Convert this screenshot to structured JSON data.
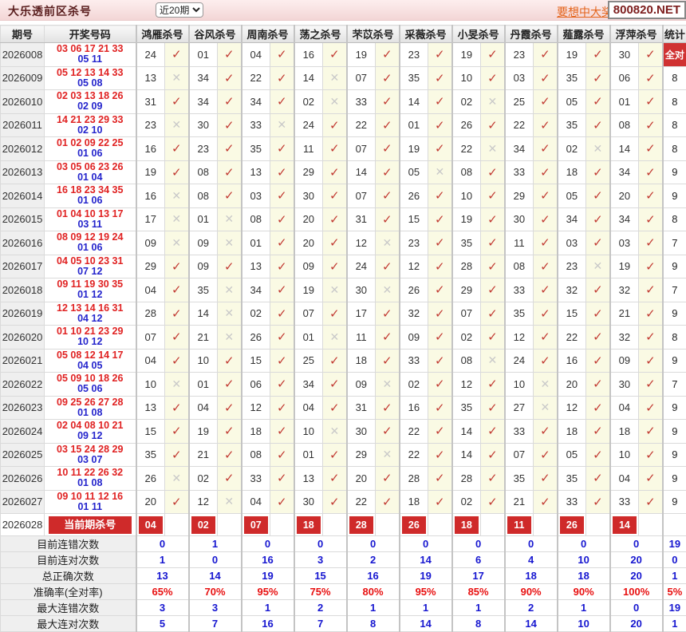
{
  "header": {
    "title": "大乐透前区杀号",
    "range_value": "近20期",
    "promo_link": "要想中大奖，天",
    "site_badge": "800820.NET"
  },
  "colors": {
    "accent_red": "#cf2a2a",
    "hit_check": "#c23b33",
    "miss_cross": "#c9c9c9",
    "front_numbers": "#e02222",
    "back_numbers": "#2424cc",
    "summary_blue": "#1616d0",
    "summary_red": "#e81111"
  },
  "table": {
    "columns": {
      "period": "期号",
      "numbers": "开奖号码",
      "experts": [
        "鸿雁杀号",
        "谷风杀号",
        "周南杀号",
        "荡之杀号",
        "芣苡杀号",
        "采薇杀号",
        "小旻杀号",
        "丹霞杀号",
        "薤露杀号",
        "浮萍杀号"
      ],
      "stat": "统计"
    },
    "marks": {
      "hit": "✓",
      "miss": "✕"
    },
    "rows": [
      {
        "period": "2026008",
        "front": "03 06 17 21 33",
        "back": "05 11",
        "kills": [
          "24",
          "01",
          "04",
          "16",
          "19",
          "23",
          "19",
          "23",
          "19",
          "30"
        ],
        "marks": [
          1,
          1,
          1,
          1,
          1,
          1,
          1,
          1,
          1,
          1
        ],
        "stat": "全对"
      },
      {
        "period": "2026009",
        "front": "05 12 13 14 33",
        "back": "05 08",
        "kills": [
          "13",
          "34",
          "22",
          "14",
          "07",
          "35",
          "10",
          "03",
          "35",
          "06"
        ],
        "marks": [
          0,
          1,
          1,
          0,
          1,
          1,
          1,
          1,
          1,
          1
        ],
        "stat": "8"
      },
      {
        "period": "2026010",
        "front": "02 03 13 18 26",
        "back": "02 09",
        "kills": [
          "31",
          "34",
          "34",
          "02",
          "33",
          "14",
          "02",
          "25",
          "05",
          "01"
        ],
        "marks": [
          1,
          1,
          1,
          0,
          1,
          1,
          0,
          1,
          1,
          1
        ],
        "stat": "8"
      },
      {
        "period": "2026011",
        "front": "14 21 23 29 33",
        "back": "02 10",
        "kills": [
          "23",
          "30",
          "33",
          "24",
          "22",
          "01",
          "26",
          "22",
          "35",
          "08"
        ],
        "marks": [
          0,
          1,
          0,
          1,
          1,
          1,
          1,
          1,
          1,
          1
        ],
        "stat": "8"
      },
      {
        "period": "2026012",
        "front": "01 02 09 22 25",
        "back": "01 06",
        "kills": [
          "16",
          "23",
          "35",
          "11",
          "07",
          "19",
          "22",
          "34",
          "02",
          "14"
        ],
        "marks": [
          1,
          1,
          1,
          1,
          1,
          1,
          0,
          1,
          0,
          1
        ],
        "stat": "8"
      },
      {
        "period": "2026013",
        "front": "03 05 06 23 26",
        "back": "01 04",
        "kills": [
          "19",
          "08",
          "13",
          "29",
          "14",
          "05",
          "08",
          "33",
          "18",
          "34"
        ],
        "marks": [
          1,
          1,
          1,
          1,
          1,
          0,
          1,
          1,
          1,
          1
        ],
        "stat": "9"
      },
      {
        "period": "2026014",
        "front": "16 18 23 34 35",
        "back": "01 06",
        "kills": [
          "16",
          "08",
          "03",
          "30",
          "07",
          "26",
          "10",
          "29",
          "05",
          "20"
        ],
        "marks": [
          0,
          1,
          1,
          1,
          1,
          1,
          1,
          1,
          1,
          1
        ],
        "stat": "9"
      },
      {
        "period": "2026015",
        "front": "01 04 10 13 17",
        "back": "03 11",
        "kills": [
          "17",
          "01",
          "08",
          "20",
          "31",
          "15",
          "19",
          "30",
          "34",
          "34"
        ],
        "marks": [
          0,
          0,
          1,
          1,
          1,
          1,
          1,
          1,
          1,
          1
        ],
        "stat": "8"
      },
      {
        "period": "2026016",
        "front": "08 09 12 19 24",
        "back": "01 06",
        "kills": [
          "09",
          "09",
          "01",
          "20",
          "12",
          "23",
          "35",
          "11",
          "03",
          "03"
        ],
        "marks": [
          0,
          0,
          1,
          1,
          0,
          1,
          1,
          1,
          1,
          1
        ],
        "stat": "7"
      },
      {
        "period": "2026017",
        "front": "04 05 10 23 31",
        "back": "07 12",
        "kills": [
          "29",
          "09",
          "13",
          "09",
          "24",
          "12",
          "28",
          "08",
          "23",
          "19"
        ],
        "marks": [
          1,
          1,
          1,
          1,
          1,
          1,
          1,
          1,
          0,
          1
        ],
        "stat": "9"
      },
      {
        "period": "2026018",
        "front": "09 11 19 30 35",
        "back": "01 12",
        "kills": [
          "04",
          "35",
          "34",
          "19",
          "30",
          "26",
          "29",
          "33",
          "32",
          "32"
        ],
        "marks": [
          1,
          0,
          1,
          0,
          0,
          1,
          1,
          1,
          1,
          1
        ],
        "stat": "7"
      },
      {
        "period": "2026019",
        "front": "12 13 14 16 31",
        "back": "04 12",
        "kills": [
          "28",
          "14",
          "02",
          "07",
          "17",
          "32",
          "07",
          "35",
          "15",
          "21"
        ],
        "marks": [
          1,
          0,
          1,
          1,
          1,
          1,
          1,
          1,
          1,
          1
        ],
        "stat": "9"
      },
      {
        "period": "2026020",
        "front": "01 10 21 23 29",
        "back": "10 12",
        "kills": [
          "07",
          "21",
          "26",
          "01",
          "11",
          "09",
          "02",
          "12",
          "22",
          "32"
        ],
        "marks": [
          1,
          0,
          1,
          0,
          1,
          1,
          1,
          1,
          1,
          1
        ],
        "stat": "8"
      },
      {
        "period": "2026021",
        "front": "05 08 12 14 17",
        "back": "04 05",
        "kills": [
          "04",
          "10",
          "15",
          "25",
          "18",
          "33",
          "08",
          "24",
          "16",
          "09"
        ],
        "marks": [
          1,
          1,
          1,
          1,
          1,
          1,
          0,
          1,
          1,
          1
        ],
        "stat": "9"
      },
      {
        "period": "2026022",
        "front": "05 09 10 18 26",
        "back": "05 06",
        "kills": [
          "10",
          "01",
          "06",
          "34",
          "09",
          "02",
          "12",
          "10",
          "20",
          "30"
        ],
        "marks": [
          0,
          1,
          1,
          1,
          0,
          1,
          1,
          0,
          1,
          1
        ],
        "stat": "7"
      },
      {
        "period": "2026023",
        "front": "09 25 26 27 28",
        "back": "01 08",
        "kills": [
          "13",
          "04",
          "12",
          "04",
          "31",
          "16",
          "35",
          "27",
          "12",
          "04"
        ],
        "marks": [
          1,
          1,
          1,
          1,
          1,
          1,
          1,
          0,
          1,
          1
        ],
        "stat": "9"
      },
      {
        "period": "2026024",
        "front": "02 04 08 10 21",
        "back": "09 12",
        "kills": [
          "15",
          "19",
          "18",
          "10",
          "30",
          "22",
          "14",
          "33",
          "18",
          "18"
        ],
        "marks": [
          1,
          1,
          1,
          0,
          1,
          1,
          1,
          1,
          1,
          1
        ],
        "stat": "9"
      },
      {
        "period": "2026025",
        "front": "03 15 24 28 29",
        "back": "03 07",
        "kills": [
          "35",
          "21",
          "08",
          "01",
          "29",
          "22",
          "14",
          "07",
          "05",
          "10"
        ],
        "marks": [
          1,
          1,
          1,
          1,
          0,
          1,
          1,
          1,
          1,
          1
        ],
        "stat": "9"
      },
      {
        "period": "2026026",
        "front": "10 11 22 26 32",
        "back": "01 08",
        "kills": [
          "26",
          "02",
          "33",
          "13",
          "20",
          "28",
          "28",
          "35",
          "35",
          "04"
        ],
        "marks": [
          0,
          1,
          1,
          1,
          1,
          1,
          1,
          1,
          1,
          1
        ],
        "stat": "9"
      },
      {
        "period": "2026027",
        "front": "09 10 11 12 16",
        "back": "01 11",
        "kills": [
          "20",
          "12",
          "04",
          "30",
          "22",
          "18",
          "02",
          "21",
          "33",
          "33"
        ],
        "marks": [
          1,
          0,
          1,
          1,
          1,
          1,
          1,
          1,
          1,
          1
        ],
        "stat": "9"
      }
    ],
    "current_row": {
      "period": "2026028",
      "label": "当前期杀号",
      "kills": [
        "04",
        "02",
        "07",
        "18",
        "28",
        "26",
        "18",
        "11",
        "26",
        "14"
      ]
    },
    "summary_rows": [
      {
        "label": "目前连错次数",
        "values": [
          "0",
          "1",
          "0",
          "0",
          "0",
          "0",
          "0",
          "0",
          "0",
          "0"
        ],
        "stat": "19",
        "color": "blue"
      },
      {
        "label": "目前连对次数",
        "values": [
          "1",
          "0",
          "16",
          "3",
          "2",
          "14",
          "6",
          "4",
          "10",
          "20"
        ],
        "stat": "0",
        "color": "blue"
      },
      {
        "label": "总正确次数",
        "values": [
          "13",
          "14",
          "19",
          "15",
          "16",
          "19",
          "17",
          "18",
          "18",
          "20"
        ],
        "stat": "1",
        "color": "blue"
      },
      {
        "label": "准确率(全对率)",
        "values": [
          "65%",
          "70%",
          "95%",
          "75%",
          "80%",
          "95%",
          "85%",
          "90%",
          "90%",
          "100%"
        ],
        "stat": "5%",
        "color": "red"
      },
      {
        "label": "最大连错次数",
        "values": [
          "3",
          "3",
          "1",
          "2",
          "1",
          "1",
          "1",
          "2",
          "1",
          "0"
        ],
        "stat": "19",
        "color": "blue"
      },
      {
        "label": "最大连对次数",
        "values": [
          "5",
          "7",
          "16",
          "7",
          "8",
          "14",
          "8",
          "14",
          "10",
          "20"
        ],
        "stat": "1",
        "color": "blue"
      }
    ]
  }
}
